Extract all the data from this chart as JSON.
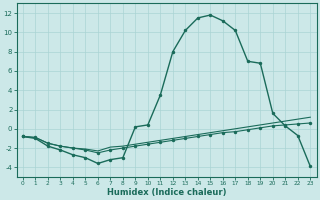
{
  "xlabel": "Humidex (Indice chaleur)",
  "bg_color": "#cce8e8",
  "line_color": "#1a6b5a",
  "grid_color": "#aad4d4",
  "xlim": [
    -0.5,
    23.5
  ],
  "ylim": [
    -5,
    13
  ],
  "xticks": [
    0,
    1,
    2,
    3,
    4,
    5,
    6,
    7,
    8,
    9,
    10,
    11,
    12,
    13,
    14,
    15,
    16,
    17,
    18,
    19,
    20,
    21,
    22,
    23
  ],
  "yticks": [
    -4,
    -2,
    0,
    2,
    4,
    6,
    8,
    10,
    12
  ],
  "series_main_x": [
    0,
    1,
    2,
    3,
    4,
    5,
    6,
    7,
    8,
    9,
    10,
    11,
    12,
    13,
    14,
    15,
    16,
    17,
    18,
    19,
    20,
    21,
    22,
    23
  ],
  "series_main_y": [
    -0.8,
    -1.0,
    -1.8,
    -2.2,
    -2.7,
    -3.0,
    -3.6,
    -3.2,
    -3.0,
    0.2,
    0.4,
    3.5,
    8.0,
    10.2,
    11.5,
    11.8,
    11.2,
    10.2,
    7.0,
    6.8,
    1.6,
    0.3,
    -0.7,
    -3.9
  ],
  "series_flat1_x": [
    0,
    1,
    2,
    3,
    4,
    5,
    6,
    7,
    8,
    9,
    10,
    11,
    12,
    13,
    14,
    15,
    16,
    17,
    18,
    19,
    20,
    21,
    22,
    23
  ],
  "series_flat1_y": [
    -0.8,
    -0.9,
    -1.5,
    -1.8,
    -2.0,
    -2.1,
    -2.3,
    -1.9,
    -1.8,
    -1.6,
    -1.4,
    -1.2,
    -1.0,
    -0.8,
    -0.6,
    -0.4,
    -0.2,
    0.0,
    0.2,
    0.4,
    0.6,
    0.8,
    1.0,
    1.2
  ],
  "series_flat2_x": [
    0,
    1,
    2,
    3,
    4,
    5,
    6,
    7,
    8,
    9,
    10,
    11,
    12,
    13,
    14,
    15,
    16,
    17,
    18,
    19,
    20,
    21,
    22,
    23
  ],
  "series_flat2_y": [
    -0.8,
    -0.9,
    -1.5,
    -1.8,
    -2.0,
    -2.2,
    -2.5,
    -2.2,
    -2.0,
    -1.8,
    -1.6,
    -1.4,
    -1.2,
    -1.0,
    -0.8,
    -0.6,
    -0.4,
    -0.3,
    -0.1,
    0.1,
    0.3,
    0.4,
    0.5,
    0.6
  ],
  "marker_size": 2.5
}
